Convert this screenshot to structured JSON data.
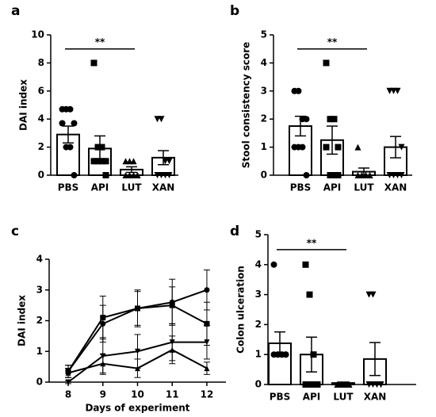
{
  "chart_data": [
    {
      "type": "bar",
      "panel_label": "a",
      "ylabel": "DAI index",
      "categories": [
        "PBS",
        "API",
        "LUT",
        "XAN"
      ],
      "values": [
        2.9,
        1.9,
        0.4,
        1.25
      ],
      "errors": [
        0.6,
        0.9,
        0.2,
        0.5
      ],
      "points": [
        [
          4.7,
          4.7,
          4.7,
          3.7,
          3.7,
          2,
          2,
          0
        ],
        [
          8,
          2,
          2,
          1,
          1,
          1,
          1,
          0
        ],
        [
          1,
          1,
          1,
          0,
          0,
          0,
          0,
          0
        ],
        [
          4,
          4,
          1,
          1,
          0,
          0,
          0,
          0
        ]
      ],
      "markers": [
        "circle",
        "square",
        "triangle-up",
        "triangle-down"
      ],
      "ylim": [
        0,
        10
      ],
      "yticks": [
        0,
        2,
        4,
        6,
        8,
        10
      ],
      "annotation": "**",
      "color": "#000000"
    },
    {
      "type": "bar",
      "panel_label": "b",
      "ylabel": "Stool consistency score",
      "categories": [
        "PBS",
        "API",
        "LUT",
        "XAN"
      ],
      "values": [
        1.75,
        1.25,
        0.125,
        1.0
      ],
      "errors": [
        0.35,
        0.5,
        0.13,
        0.38
      ],
      "points": [
        [
          3,
          3,
          2,
          2,
          1,
          1,
          1,
          0
        ],
        [
          4,
          2,
          2,
          1,
          1,
          0,
          0,
          0
        ],
        [
          1,
          0,
          0,
          0,
          0,
          0,
          0,
          0
        ],
        [
          3,
          3,
          3,
          1,
          0,
          0,
          0,
          0
        ]
      ],
      "markers": [
        "circle",
        "square",
        "triangle-up",
        "triangle-down"
      ],
      "ylim": [
        0,
        5
      ],
      "yticks": [
        0,
        1,
        2,
        3,
        4,
        5
      ],
      "annotation": "**",
      "color": "#000000"
    },
    {
      "type": "line",
      "panel_label": "c",
      "ylabel": "DAI index",
      "xlabel": "Days of experiment",
      "x": [
        8,
        9,
        10,
        11,
        12
      ],
      "series": [
        {
          "color": "#000000",
          "marker": "circle",
          "values": [
            0.35,
            1.9,
            2.4,
            2.6,
            3.0
          ],
          "errors": [
            0.2,
            0.6,
            0.6,
            0.75,
            0.65
          ]
        },
        {
          "color": "#000000",
          "marker": "square",
          "values": [
            0.35,
            2.1,
            2.4,
            2.5,
            1.9
          ],
          "errors": [
            0.2,
            0.7,
            0.55,
            0.6,
            0.7
          ]
        },
        {
          "color": "#000000",
          "marker": "triangle-up",
          "values": [
            0.3,
            0.6,
            0.45,
            1.05,
            0.45
          ],
          "errors": [
            0.15,
            0.3,
            0.3,
            0.45,
            0.2
          ]
        },
        {
          "color": "#000000",
          "marker": "triangle-down",
          "values": [
            0,
            0.85,
            1.0,
            1.3,
            1.3
          ],
          "errors": [
            0.05,
            0.6,
            0.55,
            0.6,
            0.55
          ]
        }
      ],
      "xlim": [
        7.45,
        12.55
      ],
      "xticks": [
        8,
        9,
        10,
        11,
        12
      ],
      "ylim": [
        0,
        4
      ],
      "yticks": [
        0,
        1,
        2,
        3,
        4
      ]
    },
    {
      "type": "bar",
      "panel_label": "d",
      "ylabel": "Colon ulceration",
      "categories": [
        "PBS",
        "API",
        "LUT",
        "XAN"
      ],
      "values": [
        1.375,
        1.0,
        0.05,
        0.85
      ],
      "errors": [
        0.38,
        0.58,
        0.03,
        0.55
      ],
      "points": [
        [
          4,
          1,
          1,
          1,
          1,
          1,
          1,
          1
        ],
        [
          4,
          3,
          1,
          0,
          0,
          0,
          0,
          0
        ],
        [
          0,
          0,
          0,
          0,
          0,
          0,
          0,
          0
        ],
        [
          3,
          3,
          0,
          0,
          0,
          0,
          0,
          0
        ]
      ],
      "markers": [
        "circle",
        "square",
        "triangle-up",
        "triangle-down"
      ],
      "ylim": [
        0,
        5
      ],
      "yticks": [
        0,
        1,
        2,
        3,
        4,
        5
      ],
      "annotation": "**",
      "color": "#000000"
    }
  ]
}
